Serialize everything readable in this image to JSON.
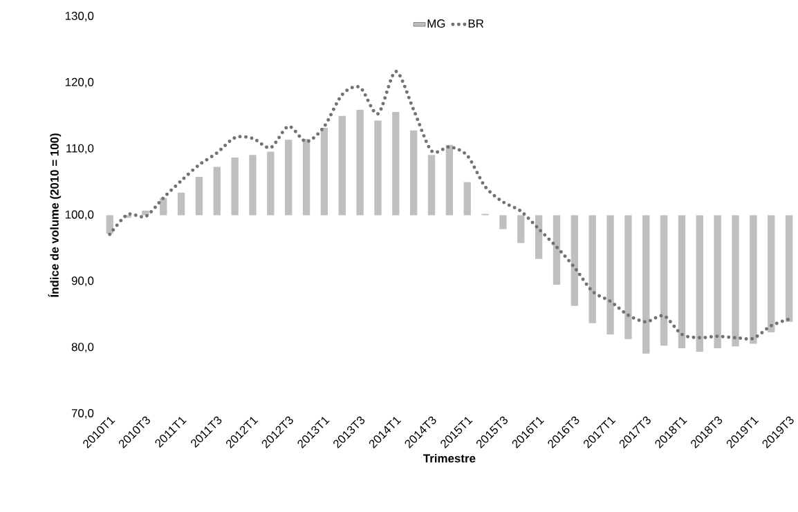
{
  "chart_data": {
    "type": "bar",
    "xlabel": "Trimestre",
    "ylabel": "Índice de volume (2010 = 100)",
    "categories": [
      "2010T1",
      null,
      "2010T3",
      null,
      "2011T1",
      null,
      "2011T3",
      null,
      "2012T1",
      null,
      "2012T3",
      null,
      "2013T1",
      null,
      "2013T3",
      null,
      "2014T1",
      null,
      "2014T3",
      null,
      "2015T1",
      null,
      "2015T3",
      null,
      "2016T1",
      null,
      "2016T3",
      null,
      "2017T1",
      null,
      "2017T3",
      null,
      "2018T1",
      null,
      "2018T3",
      null,
      "2019T1",
      null,
      "2019T3"
    ],
    "series": [
      {
        "name": "MG",
        "color": "#bfbfbf",
        "base": [
          100,
          100,
          100,
          100,
          100,
          100,
          100,
          100,
          100,
          100,
          100,
          100,
          100,
          100,
          100,
          100,
          100,
          100,
          100,
          100,
          100,
          100,
          100,
          100,
          100,
          100,
          100,
          100,
          100,
          100,
          100,
          100,
          100,
          100,
          100,
          100,
          100,
          100,
          100
        ],
        "values": [
          -2.8,
          -0.4,
          0.7,
          2.6,
          3.4,
          5.8,
          7.3,
          8.7,
          9.1,
          9.6,
          11.4,
          11.5,
          13.2,
          15.0,
          15.9,
          14.3,
          15.6,
          12.8,
          9.1,
          10.6,
          5.0,
          0.2,
          -2.1,
          -4.2,
          -6.6,
          -10.5,
          -13.7,
          -16.3,
          -18.0,
          -18.7,
          -20.9,
          -19.7,
          -20.1,
          -20.6,
          -20.1,
          -19.8,
          -19.4,
          -17.7,
          -16.1
        ]
      },
      {
        "name": "BR",
        "type": "line",
        "color": "#767171",
        "line_style": "dotted",
        "marker": "none",
        "values": [
          97.1,
          100.1,
          99.8,
          102.6,
          105.2,
          107.6,
          109.4,
          111.7,
          111.6,
          110.2,
          113.4,
          111.1,
          113.4,
          118.2,
          119.3,
          115.3,
          121.7,
          115.9,
          109.7,
          110.3,
          109.0,
          104.3,
          102.0,
          100.6,
          97.9,
          95.2,
          92.1,
          88.5,
          87.0,
          84.9,
          83.9,
          84.8,
          82.0,
          81.5,
          81.7,
          81.5,
          81.4,
          83.3,
          84.3
        ]
      }
    ],
    "ylim": [
      70,
      130
    ],
    "yticks": [
      {
        "value": 70,
        "label": "70,0"
      },
      {
        "value": 80,
        "label": "80,0"
      },
      {
        "value": 90,
        "label": "90,0"
      },
      {
        "value": 100,
        "label": "100,0"
      },
      {
        "value": 110,
        "label": "110,0"
      },
      {
        "value": 120,
        "label": "120,0"
      },
      {
        "value": 130,
        "label": "130,0"
      }
    ],
    "grid": false,
    "legend": "top"
  }
}
